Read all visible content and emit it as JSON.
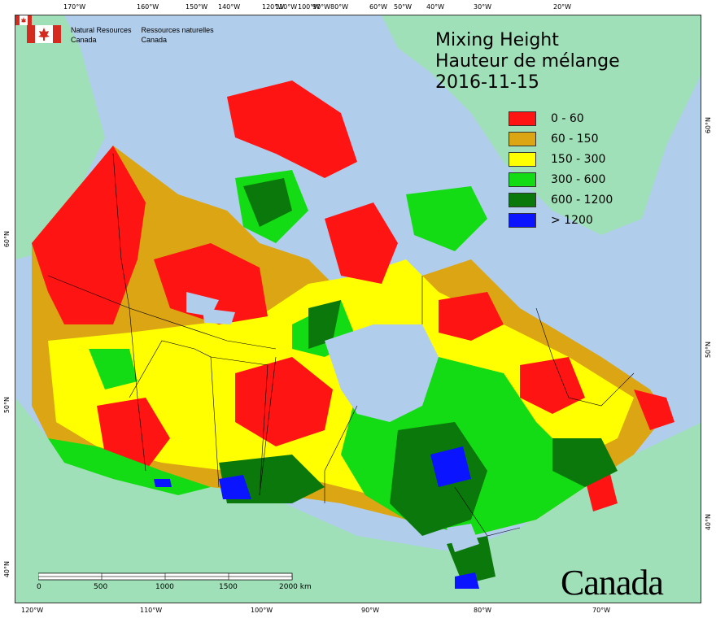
{
  "header": {
    "org_en_line1": "Natural Resources",
    "org_en_line2": "Canada",
    "org_fr_line1": "Ressources naturelles",
    "org_fr_line2": "Canada"
  },
  "title": {
    "line1": "Mixing Height",
    "line2": "Hauteur de mélange",
    "date": "2016-11-15"
  },
  "legend": {
    "items": [
      {
        "label": "0 - 60",
        "color": "#ff1414"
      },
      {
        "label": "60 - 150",
        "color": "#dca514"
      },
      {
        "label": "150 - 300",
        "color": "#ffff00"
      },
      {
        "label": "300 - 600",
        "color": "#14dc14"
      },
      {
        "label": "600 - 1200",
        "color": "#0a780a"
      },
      {
        "label": "> 1200",
        "color": "#0a14ff"
      }
    ]
  },
  "graticule": {
    "top_ticks": [
      "170°W",
      "160°W",
      "150°W",
      "140°W",
      "120°W",
      "110°W",
      "100°W",
      "90°W",
      "80°W",
      "60°W",
      "50°W",
      "40°W",
      "30°W",
      "20°W"
    ],
    "bottom_ticks": [
      "120°W",
      "110°W",
      "100°W",
      "90°W",
      "80°W",
      "70°W"
    ],
    "left_ticks": [
      "60°N",
      "50°N",
      "40°N"
    ],
    "right_ticks": [
      "60°N",
      "50°N",
      "40°N"
    ]
  },
  "scale": {
    "labels": [
      "0",
      "500",
      "1000",
      "1500",
      "2000 km"
    ]
  },
  "wordmark": "Canada",
  "colors": {
    "ocean": "#b0cdec",
    "land_outside": "#9fe0b8",
    "boundary": "#000000"
  }
}
